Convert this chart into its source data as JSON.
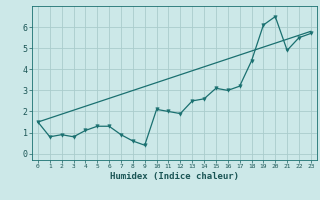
{
  "xlabel": "Humidex (Indice chaleur)",
  "background_color": "#cce8e8",
  "grid_color": "#aacccc",
  "line_color": "#1a7070",
  "xlim": [
    -0.5,
    23.5
  ],
  "ylim": [
    -0.3,
    7.0
  ],
  "xticks": [
    0,
    1,
    2,
    3,
    4,
    5,
    6,
    7,
    8,
    9,
    10,
    11,
    12,
    13,
    14,
    15,
    16,
    17,
    18,
    19,
    20,
    21,
    22,
    23
  ],
  "yticks": [
    0,
    1,
    2,
    3,
    4,
    5,
    6
  ],
  "line1_x": [
    0,
    1,
    2,
    3,
    4,
    5,
    6,
    7,
    8,
    9,
    10,
    11,
    12,
    13,
    14,
    15,
    16,
    17,
    18,
    19,
    20,
    21,
    22,
    23
  ],
  "line1_y": [
    1.5,
    0.8,
    0.9,
    0.8,
    1.1,
    1.3,
    1.3,
    0.9,
    0.6,
    0.4,
    2.1,
    2.0,
    1.9,
    2.5,
    2.6,
    3.1,
    3.0,
    3.2,
    4.4,
    6.1,
    6.5,
    4.9,
    5.5,
    5.7
  ],
  "line2_x": [
    0,
    23
  ],
  "line2_y": [
    1.5,
    5.8
  ],
  "xlabel_fontsize": 6.5,
  "xtick_fontsize": 4.5,
  "ytick_fontsize": 6.0
}
